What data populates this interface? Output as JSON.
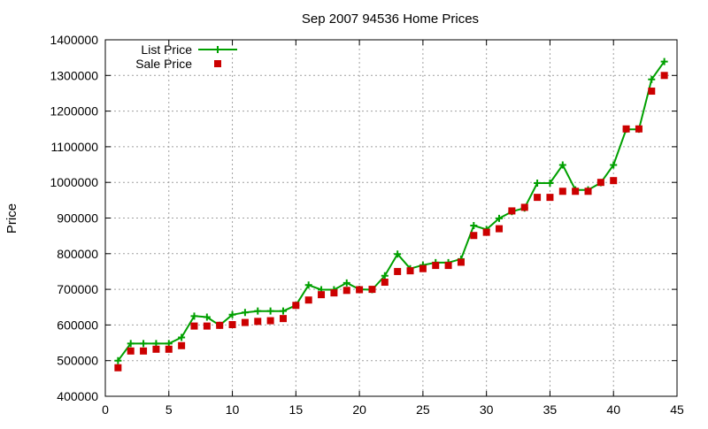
{
  "chart_data": {
    "type": "line",
    "title": "Sep 2007 94536 Home Prices",
    "xlabel": "",
    "ylabel": "Price",
    "xlim": [
      0,
      45
    ],
    "ylim": [
      400000,
      1400000
    ],
    "xticks": [
      0,
      5,
      10,
      15,
      20,
      25,
      30,
      35,
      40,
      45
    ],
    "yticks": [
      400000,
      500000,
      600000,
      700000,
      800000,
      900000,
      1000000,
      1100000,
      1200000,
      1300000,
      1400000
    ],
    "grid": true,
    "legend_position": "top-left",
    "x": [
      1,
      2,
      3,
      4,
      5,
      6,
      7,
      8,
      9,
      10,
      11,
      12,
      13,
      14,
      15,
      16,
      17,
      18,
      19,
      20,
      21,
      22,
      23,
      24,
      25,
      26,
      27,
      28,
      29,
      30,
      31,
      32,
      33,
      34,
      35,
      36,
      37,
      38,
      39,
      40,
      41,
      42,
      43,
      44
    ],
    "series": [
      {
        "name": "List Price",
        "style": "line-plus",
        "color": "#00a000",
        "values": [
          500000,
          548000,
          548000,
          548000,
          548000,
          565000,
          625000,
          622000,
          599000,
          629000,
          635000,
          639000,
          639000,
          639000,
          655000,
          712000,
          699000,
          699000,
          718000,
          700000,
          699000,
          738000,
          799000,
          758000,
          768000,
          775000,
          775000,
          785000,
          879000,
          868000,
          899000,
          918000,
          928000,
          998000,
          998000,
          1049000,
          979000,
          979000,
          999000,
          1049000,
          1149000,
          1149000,
          1289000,
          1339000
        ]
      },
      {
        "name": "Sale Price",
        "style": "square-points",
        "color": "#cc0000",
        "values": [
          480000,
          527000,
          527000,
          532000,
          532000,
          542000,
          597000,
          597000,
          599000,
          601000,
          607000,
          610000,
          612000,
          618000,
          655000,
          670000,
          685000,
          690000,
          697000,
          699000,
          700000,
          720000,
          750000,
          752000,
          758000,
          767000,
          767000,
          776000,
          851000,
          860000,
          870000,
          920000,
          930000,
          958000,
          958000,
          975000,
          975000,
          975000,
          1000000,
          1005000,
          1150000,
          1150000,
          1256000,
          1300000
        ]
      }
    ]
  }
}
